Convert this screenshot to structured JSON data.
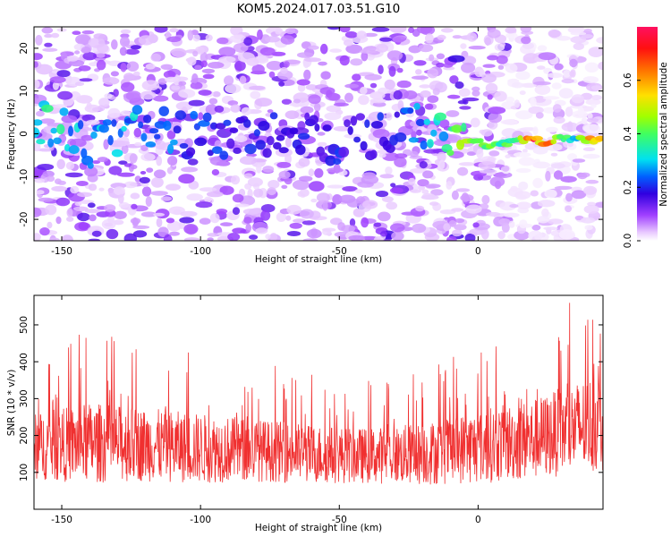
{
  "title": "KOM5.2024.017.03.51.G10",
  "chart_data": [
    {
      "type": "heatmap",
      "xlabel": "Height of straight line (km)",
      "ylabel": "Frequency (Hz)",
      "xlim": [
        -160,
        45
      ],
      "ylim": [
        -25,
        25
      ],
      "xticks": [
        -150,
        -100,
        -50,
        0
      ],
      "yticks": [
        -20,
        -10,
        0,
        10,
        20
      ],
      "colorbar": {
        "label": "Normalized spectral amplitude",
        "range": [
          0,
          0.8
        ],
        "ticks": [
          0.0,
          0.2,
          0.4,
          0.6
        ],
        "tick_labels": [
          "0.0",
          "0.2",
          "0.4",
          "0.6"
        ]
      },
      "ridge": {
        "description_points_x": [
          -155,
          -140,
          -125,
          -110,
          -90,
          -70,
          -50,
          -30,
          -20,
          -12,
          -5,
          0,
          5,
          10,
          15,
          20,
          25,
          30,
          35,
          40
        ],
        "description_points_f": [
          3,
          -3,
          2,
          0,
          -1,
          1,
          -2,
          1,
          2,
          1,
          -1,
          -2,
          -3,
          -2,
          -1.5,
          -1.5,
          -2,
          -1,
          -1,
          -1.5
        ],
        "peak_amplitude": [
          0.35,
          0.3,
          0.3,
          0.25,
          0.2,
          0.2,
          0.2,
          0.2,
          0.3,
          0.35,
          0.45,
          0.45,
          0.4,
          0.45,
          0.55,
          0.7,
          0.7,
          0.4,
          0.35,
          0.65
        ]
      },
      "grid": false
    },
    {
      "type": "line",
      "xlabel": "Height of straight line (km)",
      "ylabel": "SNR (10 * v/v)",
      "xlim": [
        -160,
        45
      ],
      "ylim": [
        0,
        580
      ],
      "xticks": [
        -150,
        -100,
        -50,
        0
      ],
      "yticks": [
        100,
        200,
        300,
        400,
        500
      ],
      "series_color": "#f03030",
      "envelope": {
        "x": [
          -160,
          -140,
          -120,
          -100,
          -80,
          -60,
          -40,
          -20,
          0,
          20,
          30,
          40,
          45
        ],
        "mean": [
          170,
          180,
          175,
          165,
          160,
          150,
          145,
          150,
          170,
          190,
          210,
          230,
          240
        ],
        "spread": [
          90,
          110,
          100,
          95,
          85,
          80,
          75,
          85,
          100,
          110,
          120,
          130,
          135
        ]
      },
      "grid": false
    }
  ],
  "colors": {
    "background": "#ffffff",
    "snr_line": "#f03030",
    "axis": "#000000"
  }
}
